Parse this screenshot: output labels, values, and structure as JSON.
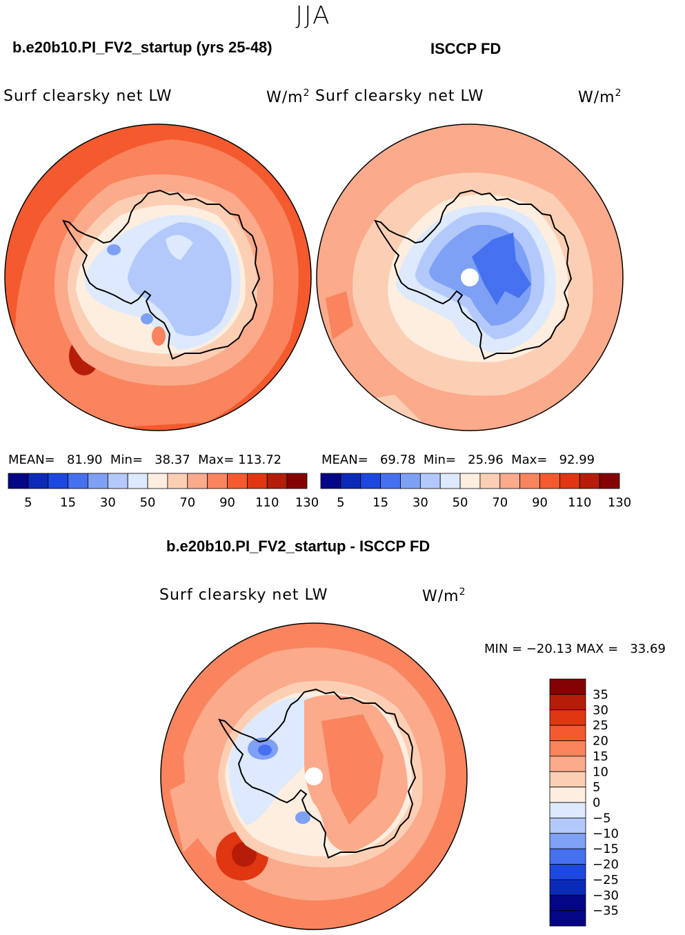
{
  "season": "JJA",
  "chart_data": [
    {
      "type": "heatmap",
      "projection": "south polar stereographic",
      "title": "b.e20b10.PI_FV2_startup (yrs 25-48)",
      "field": "Surf clearsky net LW",
      "units": "W/m",
      "units_exp": "2",
      "stats": {
        "mean_label": "MEAN=",
        "mean": "81.90",
        "min_label": "Min=",
        "min": "38.37",
        "max_label": "Max=",
        "max": "113.72"
      },
      "colorbar_levels": [
        5,
        15,
        30,
        50,
        70,
        90,
        110,
        130
      ],
      "colorbar_colors": [
        "#050587",
        "#0a2ab8",
        "#1c48e0",
        "#4571f0",
        "#7ea0f5",
        "#b3c9fb",
        "#dde9fc",
        "#fdeee0",
        "#fccfb4",
        "#fbaa8b",
        "#f9845e",
        "#f45a2e",
        "#e03612",
        "#b51d08",
        "#850204"
      ]
    },
    {
      "type": "heatmap",
      "projection": "south polar stereographic",
      "title": "ISCCP FD",
      "field": "Surf clearsky net LW",
      "units": "W/m",
      "units_exp": "2",
      "stats": {
        "mean_label": "MEAN=",
        "mean": "69.78",
        "min_label": "Min=",
        "min": "25.96",
        "max_label": "Max=",
        "max": "92.99"
      },
      "colorbar_levels": [
        5,
        15,
        30,
        50,
        70,
        90,
        110,
        130
      ],
      "colorbar_colors": [
        "#050587",
        "#0a2ab8",
        "#1c48e0",
        "#4571f0",
        "#7ea0f5",
        "#b3c9fb",
        "#dde9fc",
        "#fdeee0",
        "#fccfb4",
        "#fbaa8b",
        "#f9845e",
        "#f45a2e",
        "#e03612",
        "#b51d08",
        "#850204"
      ]
    },
    {
      "type": "heatmap",
      "projection": "south polar stereographic",
      "title": "b.e20b10.PI_FV2_startup - ISCCP FD",
      "field": "Surf clearsky net LW",
      "units": "W/m",
      "units_exp": "2",
      "stats": {
        "min_label": "MIN =",
        "min": "−20.13",
        "max_label": "MAX =",
        "max": "33.69"
      },
      "colorbar_levels": [
        "35",
        "30",
        "25",
        "20",
        "15",
        "10",
        "5",
        "0",
        "−5",
        "−10",
        "−15",
        "−20",
        "−25",
        "−30",
        "−35"
      ],
      "colorbar_colors": [
        "#850204",
        "#b51d08",
        "#e03612",
        "#f45a2e",
        "#f9845e",
        "#fbaa8b",
        "#fccfb4",
        "#fdeee0",
        "#dde9fc",
        "#b3c9fb",
        "#7ea0f5",
        "#4571f0",
        "#1c48e0",
        "#0a2ab8",
        "#050587",
        "#050587"
      ]
    }
  ]
}
